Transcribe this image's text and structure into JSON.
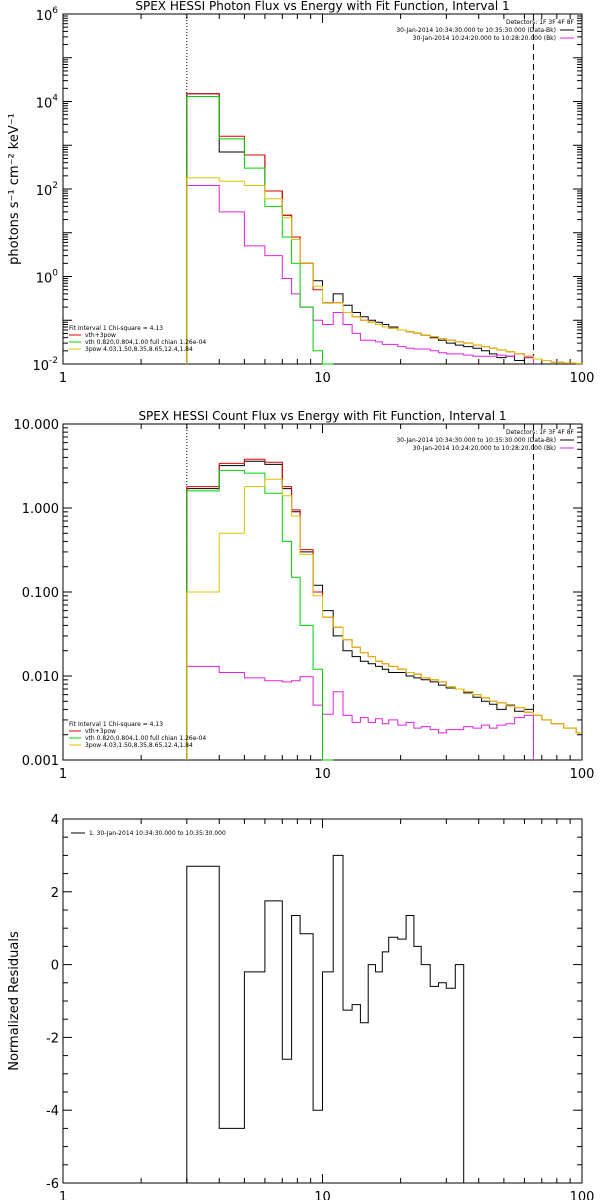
{
  "chart_data": [
    {
      "type": "line",
      "title": "SPEX HESSI Photon Flux vs Energy with Fit Function, Interval 1",
      "xlabel": "",
      "ylabel": "photons s⁻¹ cm⁻² keV⁻¹",
      "xscale": "log",
      "yscale": "log",
      "xlim": [
        1,
        100
      ],
      "ylim": [
        0.01,
        1000000
      ],
      "x_ticks": [
        1,
        10,
        100
      ],
      "x_tick_labels": [
        "1",
        "10",
        "100"
      ],
      "y_ticks": [
        0.01,
        1,
        100,
        10000,
        1000000
      ],
      "y_tick_labels": [
        {
          "base": "10",
          "exp": "-2"
        },
        {
          "base": "10",
          "exp": "0"
        },
        {
          "base": "10",
          "exp": "2"
        },
        {
          "base": "10",
          "exp": "4"
        },
        {
          "base": "10",
          "exp": "6"
        }
      ],
      "vlines": [
        {
          "x": 3,
          "style": "dotted"
        },
        {
          "x": 65,
          "style": "dashed"
        }
      ],
      "legend_top": {
        "header": "Detectors: 1F 3F 4F 8F",
        "entries": [
          {
            "text": "30-Jan-2014 10:34:30.000 to 10:35:30.000 (Data-Bk)",
            "color": "#000000"
          },
          {
            "text": "30-Jan-2014 10:24:20.000 to 10:28:20.000 (Bk)",
            "color": "#e020e0"
          }
        ]
      },
      "legend_bottom": {
        "header": "Fit Interval  1    Chi-square = 4.13",
        "entries": [
          {
            "text": "vth+3pow",
            "color": "#e00000"
          },
          {
            "text": "vth 0.820,0.804,1.00  full chian 1.26e-04",
            "color": "#00d000"
          },
          {
            "text": "3pow 4.03,1.50,8.35,8.65,12.4,1.84",
            "color": "#e0c000"
          }
        ]
      },
      "edges": [
        3,
        4,
        5,
        6,
        7,
        7.6,
        8.2,
        9.2,
        10,
        11,
        12,
        13,
        14,
        15,
        16,
        17,
        18,
        19.5,
        21,
        22.5,
        24,
        26,
        28,
        30,
        32.5,
        35,
        38,
        41,
        44,
        47,
        51,
        55,
        60,
        65,
        70,
        76,
        85,
        95,
        100
      ],
      "series": [
        {
          "name": "Data-Bk",
          "color": "#000000",
          "values": [
            15000,
            700,
            600,
            90,
            25,
            8,
            2,
            0.8,
            0.25,
            0.4,
            0.22,
            0.15,
            0.12,
            0.1,
            0.09,
            0.08,
            0.07,
            0.06,
            0.055,
            0.05,
            0.045,
            0.04,
            0.035,
            0.03,
            0.027,
            0.025,
            0.023,
            0.02,
            0.017,
            0.014,
            0.015,
            0.012,
            0.014,
            null,
            null,
            null,
            null,
            null
          ]
        },
        {
          "name": "Bk",
          "color": "#e020e0",
          "values": [
            120,
            30,
            5,
            3,
            0.9,
            0.4,
            0.2,
            0.1,
            0.08,
            0.15,
            0.08,
            0.05,
            0.035,
            0.035,
            0.032,
            0.028,
            0.028,
            0.025,
            0.023,
            0.022,
            0.022,
            0.02,
            0.018,
            0.017,
            0.017,
            0.016,
            0.015,
            0.015,
            0.015,
            0.016,
            0.015,
            0.017,
            0.014,
            null,
            null,
            null,
            null,
            null
          ]
        },
        {
          "name": "vth+3pow",
          "color": "#e00000",
          "values": [
            15000,
            1600,
            600,
            90,
            25,
            8,
            2,
            0.5,
            0.25,
            0.25,
            0.15,
            0.12,
            0.1,
            0.09,
            0.08,
            0.07,
            0.065,
            0.06,
            0.055,
            0.05,
            0.045,
            0.042,
            0.038,
            0.035,
            0.032,
            0.03,
            0.027,
            0.025,
            0.023,
            0.021,
            0.019,
            0.017,
            0.015,
            0.013,
            0.012,
            0.011,
            0.0105,
            0.0102
          ]
        },
        {
          "name": "vth",
          "color": "#00d000",
          "values": [
            13000,
            1400,
            300,
            40,
            8,
            2,
            0.2,
            0.02,
            0.003,
            null,
            null,
            null,
            null,
            null,
            null,
            null,
            null,
            null,
            null,
            null,
            null,
            null,
            null,
            null,
            null,
            null,
            null,
            null,
            null,
            null,
            null,
            null,
            null,
            null,
            null,
            null,
            null,
            null
          ]
        },
        {
          "name": "3pow",
          "color": "#e0c000",
          "values": [
            180,
            150,
            120,
            60,
            22,
            7,
            2,
            0.6,
            0.25,
            0.25,
            0.15,
            0.12,
            0.1,
            0.09,
            0.08,
            0.07,
            0.065,
            0.06,
            0.055,
            0.05,
            0.045,
            0.042,
            0.038,
            0.035,
            0.032,
            0.03,
            0.027,
            0.025,
            0.023,
            0.021,
            0.019,
            0.017,
            0.015,
            0.013,
            0.012,
            0.011,
            0.0105,
            0.0102
          ]
        }
      ]
    },
    {
      "type": "line",
      "title": "SPEX HESSI Count Flux vs Energy with Fit Function, Interval 1",
      "xlabel": "",
      "ylabel": "",
      "xscale": "log",
      "yscale": "log",
      "xlim": [
        1,
        100
      ],
      "ylim": [
        0.001,
        10
      ],
      "x_ticks": [
        1,
        10,
        100
      ],
      "x_tick_labels": [
        "1",
        "10",
        "100"
      ],
      "y_ticks": [
        0.001,
        0.01,
        0.1,
        1,
        10
      ],
      "y_tick_labels": [
        "0.001",
        "0.010",
        "0.100",
        "1.000",
        "10.000"
      ],
      "vlines": [
        {
          "x": 3,
          "style": "dotted"
        },
        {
          "x": 65,
          "style": "dashed"
        }
      ],
      "legend_top": {
        "header": "Detectors: 1F 3F 4F 8F",
        "entries": [
          {
            "text": "30-Jan-2014 10:34:30.000 to 10:35:30.000 (Data-Bk)",
            "color": "#000000"
          },
          {
            "text": "30-Jan-2014 10:24:20.000 to 10:28:20.000 (Bk)",
            "color": "#e020e0"
          }
        ]
      },
      "legend_bottom": {
        "header": "Fit Interval  1    Chi-square = 4.13",
        "entries": [
          {
            "text": "vth+3pow",
            "color": "#e00000"
          },
          {
            "text": "vth 0.820,0.804,1.00  full chian 1.26e-04",
            "color": "#00d000"
          },
          {
            "text": "3pow 4.03,1.50,8.35,8.65,12.4,1.84",
            "color": "#e0c000"
          }
        ]
      },
      "edges": [
        3,
        4,
        5,
        6,
        7,
        7.6,
        8.2,
        9.2,
        10,
        11,
        12,
        13,
        14,
        15,
        16,
        17,
        18,
        19.5,
        21,
        22.5,
        24,
        26,
        28,
        30,
        32.5,
        35,
        38,
        41,
        44,
        47,
        51,
        55,
        60,
        65,
        70,
        76,
        85,
        95,
        100
      ],
      "series": [
        {
          "name": "Data-Bk",
          "color": "#000000",
          "values": [
            1.7,
            3.2,
            3.6,
            3.3,
            1.7,
            0.9,
            0.3,
            0.12,
            0.06,
            0.03,
            0.02,
            0.017,
            0.015,
            0.014,
            0.013,
            0.012,
            0.011,
            0.011,
            0.01,
            0.0095,
            0.009,
            0.0085,
            0.0078,
            0.0072,
            0.007,
            0.0063,
            0.0056,
            0.005,
            0.0046,
            0.004,
            0.0045,
            0.0038,
            0.004,
            null,
            null,
            null,
            null,
            null
          ]
        },
        {
          "name": "Bk",
          "color": "#e020e0",
          "values": [
            0.013,
            0.011,
            0.0095,
            0.0088,
            0.0085,
            0.0088,
            0.0098,
            0.0045,
            0.0035,
            0.0065,
            0.0034,
            0.0028,
            0.0032,
            0.0028,
            0.0031,
            0.0027,
            0.003,
            0.0026,
            0.0028,
            0.0024,
            0.0025,
            0.0023,
            0.0021,
            0.0023,
            0.0023,
            0.0025,
            0.0024,
            0.0026,
            0.0024,
            0.0026,
            0.0027,
            0.0032,
            0.0034,
            null,
            null,
            null,
            null,
            null
          ]
        },
        {
          "name": "vth+3pow",
          "color": "#e00000",
          "values": [
            1.8,
            3.4,
            3.8,
            3.5,
            1.8,
            0.95,
            0.32,
            0.1,
            0.05,
            0.038,
            0.027,
            0.022,
            0.019,
            0.017,
            0.015,
            0.014,
            0.013,
            0.012,
            0.011,
            0.0105,
            0.0095,
            0.009,
            0.0085,
            0.0075,
            0.007,
            0.0065,
            0.006,
            0.0055,
            0.005,
            0.0048,
            0.0044,
            0.0042,
            0.0037,
            0.0034,
            0.003,
            0.0027,
            0.0024,
            0.0021
          ]
        },
        {
          "name": "vth",
          "color": "#00d000",
          "values": [
            1.6,
            2.8,
            2.6,
            1.5,
            0.4,
            0.15,
            0.04,
            0.012,
            0.001,
            null,
            null,
            null,
            null,
            null,
            null,
            null,
            null,
            null,
            null,
            null,
            null,
            null,
            null,
            null,
            null,
            null,
            null,
            null,
            null,
            null,
            null,
            null,
            null,
            null,
            null,
            null,
            null,
            null
          ]
        },
        {
          "name": "3pow",
          "color": "#e0c000",
          "values": [
            0.1,
            0.5,
            1.8,
            2.2,
            1.4,
            0.8,
            0.28,
            0.09,
            0.05,
            0.038,
            0.027,
            0.022,
            0.019,
            0.017,
            0.015,
            0.014,
            0.013,
            0.012,
            0.011,
            0.0105,
            0.0095,
            0.009,
            0.0085,
            0.0075,
            0.007,
            0.0065,
            0.006,
            0.0055,
            0.005,
            0.0048,
            0.0044,
            0.0042,
            0.0037,
            0.0034,
            0.003,
            0.0027,
            0.0024,
            0.0021
          ]
        }
      ]
    },
    {
      "type": "line",
      "title": "",
      "xlabel": "",
      "ylabel": "Normalized Residuals",
      "xscale": "log",
      "yscale": "linear",
      "xlim": [
        1,
        100
      ],
      "ylim": [
        -6,
        4
      ],
      "x_ticks": [
        1,
        10,
        100
      ],
      "x_tick_labels": [
        "1",
        "10",
        "100"
      ],
      "y_ticks": [
        -6,
        -4,
        -2,
        0,
        2,
        4
      ],
      "y_tick_labels": [
        "-6",
        "-4",
        "-2",
        "0",
        "2",
        "4"
      ],
      "legend_top": {
        "header": "",
        "entries": [
          {
            "text": "1. 30-Jan-2014 10:34:30.000 to 10:35:30.000",
            "color": "#000000"
          }
        ]
      },
      "edges": [
        3,
        4,
        5,
        6,
        7,
        7.6,
        8.2,
        9.2,
        10,
        11,
        12,
        13,
        14,
        15,
        16,
        17,
        18,
        19.5,
        21,
        22.5,
        24,
        26,
        28,
        30,
        32.5,
        35,
        38,
        41,
        44,
        47,
        51,
        55,
        60,
        65
      ],
      "series": [
        {
          "name": "",
          "color": "#000000",
          "values": [
            2.7,
            -4.5,
            -0.2,
            1.75,
            -2.6,
            1.35,
            0.85,
            -4.0,
            -0.2,
            3.0,
            -1.25,
            -1.1,
            -1.6,
            0.0,
            -0.2,
            0.35,
            0.75,
            0.7,
            1.35,
            0.5,
            0.0,
            -0.6,
            -0.5,
            -0.65,
            0.0,
            null,
            null,
            null,
            null,
            null,
            null,
            null,
            null
          ]
        }
      ]
    }
  ]
}
